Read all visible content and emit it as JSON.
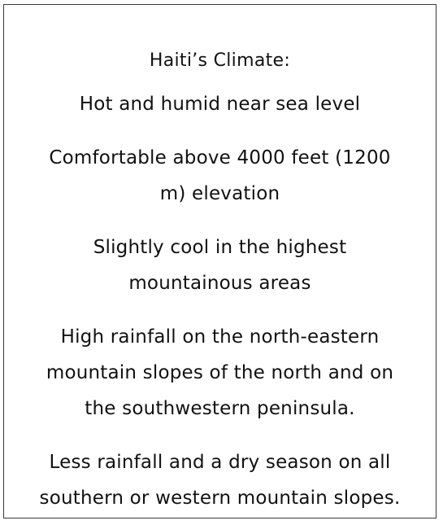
{
  "document": {
    "title": "Haiti’s Climate:",
    "items": [
      {
        "lines": [
          "Hot and humid near sea level"
        ]
      },
      {
        "lines": [
          "Comfortable above 4000 feet (1200",
          "m) elevation"
        ]
      },
      {
        "lines": [
          "Slightly cool in the highest",
          "mountainous areas"
        ]
      },
      {
        "lines": [
          "High rainfall on the north-eastern",
          "mountain slopes of the north and on",
          "the southwestern peninsula."
        ]
      },
      {
        "lines": [
          "Less rainfall and a dry season on all",
          "southern or western mountain slopes."
        ]
      }
    ]
  }
}
